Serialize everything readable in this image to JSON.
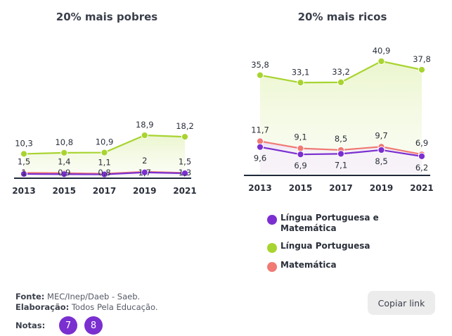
{
  "chart_data": [
    {
      "type": "line",
      "title": "20% mais pobres",
      "categories": [
        "2013",
        "2015",
        "2017",
        "2019",
        "2021"
      ],
      "ylim": [
        0,
        45
      ],
      "series": [
        {
          "name": "Língua Portuguesa",
          "values": [
            10.3,
            10.8,
            10.9,
            18.9,
            18.2
          ],
          "labels": [
            "10,3",
            "10,8",
            "10,9",
            "18,9",
            "18,2"
          ]
        },
        {
          "name": "Matemática",
          "values": [
            1.5,
            1.4,
            1.1,
            2,
            1.5
          ],
          "labels": [
            "1,5",
            "1,4",
            "1,1",
            "2",
            "1,5"
          ]
        },
        {
          "name": "Língua Portuguesa e Matemática",
          "values": [
            1,
            0.9,
            0.8,
            1.7,
            1.3
          ],
          "labels": [
            "1",
            "0,9",
            "0,8",
            "1,7",
            "1,3"
          ]
        }
      ]
    },
    {
      "type": "line",
      "title": "20% mais ricos",
      "categories": [
        "2013",
        "2015",
        "2017",
        "2019",
        "2021"
      ],
      "ylim": [
        0,
        45
      ],
      "series": [
        {
          "name": "Língua Portuguesa",
          "values": [
            35.8,
            33.1,
            33.2,
            40.9,
            37.8
          ],
          "labels": [
            "35,8",
            "33,1",
            "33,2",
            "40,9",
            "37,8"
          ]
        },
        {
          "name": "Matemática",
          "values": [
            11.7,
            9.1,
            8.5,
            9.7,
            6.9
          ],
          "labels": [
            "11,7",
            "9,1",
            "8,5",
            "9,7",
            "6,9"
          ]
        },
        {
          "name": "Língua Portuguesa e Matemática",
          "values": [
            9.6,
            6.9,
            7.1,
            8.5,
            6.2
          ],
          "labels": [
            "9,6",
            "6,9",
            "7,1",
            "8,5",
            "6,2"
          ]
        }
      ]
    }
  ],
  "legend": [
    {
      "label": "Língua Portuguesa e Matemática",
      "color": "#7b2fd1"
    },
    {
      "label": "Língua Portuguesa",
      "color": "#a8d430"
    },
    {
      "label": "Matemática",
      "color": "#f07a74"
    }
  ],
  "footer": {
    "fonte_label": "Fonte:",
    "fonte_value": "MEC/Inep/Daeb - Saeb.",
    "elaboracao_label": "Elaboração:",
    "elaboracao_value": "Todos Pela Educação.",
    "notas_label": "Notas:",
    "notes": [
      "7",
      "8"
    ]
  },
  "copy_button": "Copiar link",
  "colors": {
    "portuguesa": "#a8d430",
    "matematica": "#f07a74",
    "ambos": "#7b2fd1",
    "axis": "#1f2a3a"
  }
}
